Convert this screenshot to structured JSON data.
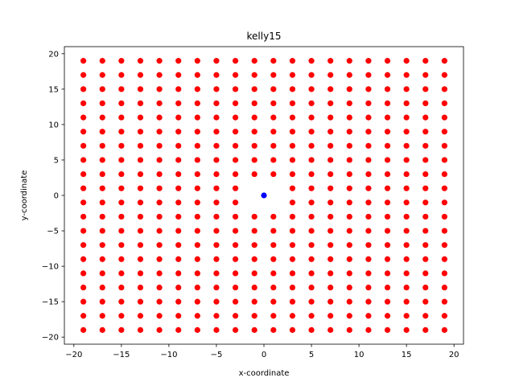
{
  "chart_data": {
    "type": "scatter",
    "title": "kelly15",
    "xlabel": "x-coordinate",
    "ylabel": "y-coordinate",
    "xlim": [
      -21,
      21
    ],
    "ylim": [
      -21,
      21
    ],
    "xticks": [
      -20,
      -15,
      -10,
      -5,
      0,
      5,
      10,
      15,
      20
    ],
    "yticks": [
      -20,
      -15,
      -10,
      -5,
      0,
      5,
      10,
      15,
      20
    ],
    "xtick_labels": [
      "−20",
      "−15",
      "−10",
      "−5",
      "0",
      "5",
      "10",
      "15",
      "20"
    ],
    "ytick_labels": [
      "−20",
      "−15",
      "−10",
      "−5",
      "0",
      "5",
      "10",
      "15",
      "20"
    ],
    "grid": false,
    "legend": "none",
    "series": [
      {
        "color": "#ff0000",
        "grid_points": {
          "x_values": [
            -19,
            -17,
            -15,
            -13,
            -11,
            -9,
            -7,
            -5,
            -3,
            -1,
            1,
            3,
            5,
            7,
            9,
            11,
            13,
            15,
            17,
            19
          ],
          "y_values": [
            -19,
            -17,
            -15,
            -13,
            -11,
            -9,
            -7,
            -5,
            -3,
            -1,
            1,
            3,
            5,
            7,
            9,
            11,
            13,
            15,
            17,
            19
          ],
          "excluded": [
            [
              -1,
              -1
            ],
            [
              -1,
              1
            ],
            [
              1,
              -1
            ],
            [
              1,
              1
            ]
          ]
        }
      },
      {
        "color": "#0000ff",
        "points": [
          [
            0,
            0
          ]
        ]
      }
    ]
  }
}
